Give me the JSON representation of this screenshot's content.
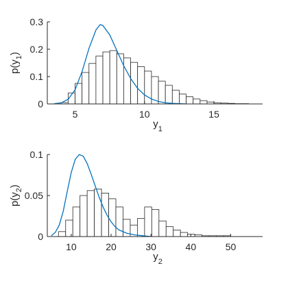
{
  "chart_data": [
    {
      "type": "histogram",
      "xlim": [
        3,
        18.5
      ],
      "ylim": [
        0,
        0.3
      ],
      "xticks": [
        5,
        10,
        15
      ],
      "yticks": [
        0,
        0.1,
        0.2,
        0.3
      ],
      "xlabel": {
        "main": "y",
        "sub": "1"
      },
      "ylabel": {
        "pre": "p(y",
        "sub": "1",
        "post": ")"
      },
      "bin_width": 0.5,
      "bins": [
        {
          "x0": 4.0,
          "value": 0.005
        },
        {
          "x0": 4.5,
          "value": 0.04
        },
        {
          "x0": 5.0,
          "value": 0.075
        },
        {
          "x0": 5.5,
          "value": 0.115
        },
        {
          "x0": 6.0,
          "value": 0.148
        },
        {
          "x0": 6.5,
          "value": 0.175
        },
        {
          "x0": 7.0,
          "value": 0.19
        },
        {
          "x0": 7.5,
          "value": 0.195
        },
        {
          "x0": 8.0,
          "value": 0.183
        },
        {
          "x0": 8.5,
          "value": 0.168
        },
        {
          "x0": 9.0,
          "value": 0.152
        },
        {
          "x0": 9.5,
          "value": 0.136
        },
        {
          "x0": 10.0,
          "value": 0.12
        },
        {
          "x0": 10.5,
          "value": 0.1
        },
        {
          "x0": 11.0,
          "value": 0.083
        },
        {
          "x0": 11.5,
          "value": 0.068
        },
        {
          "x0": 12.0,
          "value": 0.05
        },
        {
          "x0": 12.5,
          "value": 0.036
        },
        {
          "x0": 13.0,
          "value": 0.026
        },
        {
          "x0": 13.5,
          "value": 0.018
        },
        {
          "x0": 14.0,
          "value": 0.012
        },
        {
          "x0": 14.5,
          "value": 0.007
        },
        {
          "x0": 15.0,
          "value": 0.004
        },
        {
          "x0": 15.5,
          "value": 0.003
        },
        {
          "x0": 16.0,
          "value": 0.002
        },
        {
          "x0": 16.5,
          "value": 0.001
        },
        {
          "x0": 17.0,
          "value": 0.001
        }
      ],
      "curve": {
        "color": "#0072bd",
        "points": [
          [
            3.5,
            0.001
          ],
          [
            4.0,
            0.004
          ],
          [
            4.5,
            0.017
          ],
          [
            5.0,
            0.052
          ],
          [
            5.5,
            0.118
          ],
          [
            6.0,
            0.203
          ],
          [
            6.5,
            0.27
          ],
          [
            6.8,
            0.29
          ],
          [
            7.0,
            0.287
          ],
          [
            7.5,
            0.252
          ],
          [
            8.0,
            0.196
          ],
          [
            8.5,
            0.14
          ],
          [
            9.0,
            0.093
          ],
          [
            9.5,
            0.057
          ],
          [
            10.0,
            0.033
          ],
          [
            10.5,
            0.018
          ],
          [
            11.0,
            0.009
          ],
          [
            11.5,
            0.004
          ],
          [
            12.0,
            0.002
          ],
          [
            13.0,
            0.0
          ]
        ]
      }
    },
    {
      "type": "histogram",
      "xlim": [
        4,
        58
      ],
      "ylim": [
        0,
        0.1
      ],
      "xticks": [
        10,
        20,
        30,
        40,
        50
      ],
      "yticks": [
        0,
        0.05,
        0.1
      ],
      "xlabel": {
        "main": "y",
        "sub": "2"
      },
      "ylabel": {
        "pre": "p(y",
        "sub": "2",
        "post": ")"
      },
      "bin_width": 1.8,
      "bins": [
        {
          "x0": 6.8,
          "value": 0.006
        },
        {
          "x0": 8.6,
          "value": 0.02
        },
        {
          "x0": 10.4,
          "value": 0.036
        },
        {
          "x0": 12.2,
          "value": 0.05
        },
        {
          "x0": 14.0,
          "value": 0.056
        },
        {
          "x0": 15.8,
          "value": 0.058
        },
        {
          "x0": 17.6,
          "value": 0.053
        },
        {
          "x0": 19.4,
          "value": 0.046
        },
        {
          "x0": 21.2,
          "value": 0.036
        },
        {
          "x0": 23.0,
          "value": 0.021
        },
        {
          "x0": 24.8,
          "value": 0.014
        },
        {
          "x0": 26.6,
          "value": 0.022
        },
        {
          "x0": 28.4,
          "value": 0.036
        },
        {
          "x0": 30.2,
          "value": 0.033
        },
        {
          "x0": 32.0,
          "value": 0.019
        },
        {
          "x0": 33.8,
          "value": 0.012
        },
        {
          "x0": 35.6,
          "value": 0.008
        },
        {
          "x0": 37.4,
          "value": 0.005
        },
        {
          "x0": 39.2,
          "value": 0.003
        },
        {
          "x0": 41.0,
          "value": 0.002
        },
        {
          "x0": 42.8,
          "value": 0.001
        },
        {
          "x0": 44.6,
          "value": 0.001
        },
        {
          "x0": 46.4,
          "value": 0.001
        },
        {
          "x0": 48.2,
          "value": 0.001
        }
      ],
      "curve": {
        "color": "#0072bd",
        "points": [
          [
            5,
            0.001
          ],
          [
            6,
            0.005
          ],
          [
            7,
            0.014
          ],
          [
            8,
            0.031
          ],
          [
            9,
            0.055
          ],
          [
            10,
            0.078
          ],
          [
            11,
            0.094
          ],
          [
            12,
            0.1
          ],
          [
            13,
            0.098
          ],
          [
            14,
            0.089
          ],
          [
            15,
            0.076
          ],
          [
            16,
            0.062
          ],
          [
            17,
            0.048
          ],
          [
            18,
            0.036
          ],
          [
            19,
            0.026
          ],
          [
            20,
            0.018
          ],
          [
            21,
            0.012
          ],
          [
            22,
            0.008
          ],
          [
            24,
            0.004
          ],
          [
            26,
            0.002
          ],
          [
            28,
            0.001
          ],
          [
            30,
            0.0
          ]
        ]
      }
    }
  ]
}
